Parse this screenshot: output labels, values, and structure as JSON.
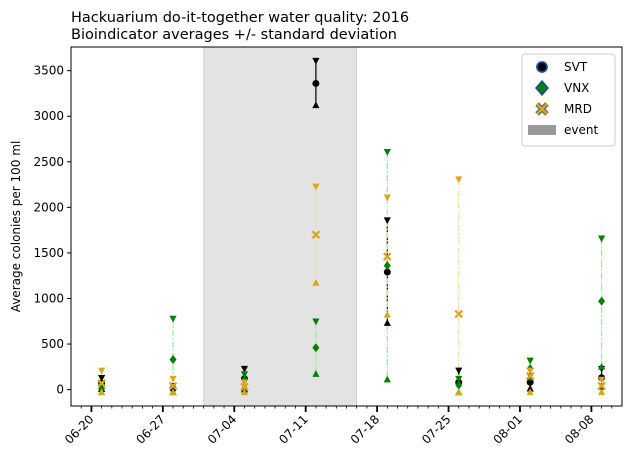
{
  "chart_data": {
    "type": "scatter",
    "title": "Hackuarium do-it-together water quality: 2016",
    "subtitle": "Bioindicator averages +/- standard deviation",
    "xlabel": "",
    "ylabel": "Average colonies per 100 ml",
    "xlim": [
      "2016-06-18",
      "2016-08-11"
    ],
    "ylim": [
      -180,
      3760
    ],
    "yticks": [
      0,
      500,
      1000,
      1500,
      2000,
      2500,
      3000,
      3500
    ],
    "xticks": [
      {
        "date": "2016-06-20",
        "label": "06-20"
      },
      {
        "date": "2016-06-27",
        "label": "06-27"
      },
      {
        "date": "2016-07-04",
        "label": "07-04"
      },
      {
        "date": "2016-07-11",
        "label": "07-11"
      },
      {
        "date": "2016-07-18",
        "label": "07-18"
      },
      {
        "date": "2016-07-25",
        "label": "07-25"
      },
      {
        "date": "2016-08-01",
        "label": "08-01"
      },
      {
        "date": "2016-08-08",
        "label": "08-08"
      }
    ],
    "event_span": [
      "2016-07-01",
      "2016-07-16"
    ],
    "legend_position": "top-right",
    "legend": [
      {
        "label": "SVT",
        "marker": "circle",
        "color": "#000000"
      },
      {
        "label": "VNX",
        "marker": "diamond",
        "color": "#008000"
      },
      {
        "label": "MRD",
        "marker": "x",
        "color": "#daa520"
      },
      {
        "label": "event",
        "marker": "patch",
        "color": "#999999"
      }
    ],
    "series": [
      {
        "name": "SVT",
        "color": "#000000",
        "marker": "circle",
        "line_color": "#000000",
        "points": [
          {
            "x": "2016-06-21",
            "y": 70,
            "low": 5,
            "high": 130
          },
          {
            "x": "2016-06-28",
            "y": 10,
            "low": -30,
            "high": 40
          },
          {
            "x": "2016-07-05",
            "y": 120,
            "low": 0,
            "high": 230
          },
          {
            "x": "2016-07-12",
            "y": 3360,
            "low": 3120,
            "high": 3610
          },
          {
            "x": "2016-07-19",
            "y": 1290,
            "low": 730,
            "high": 1860
          },
          {
            "x": "2016-07-26",
            "y": 80,
            "low": -30,
            "high": 210
          },
          {
            "x": "2016-08-02",
            "y": 80,
            "low": 10,
            "high": 150
          },
          {
            "x": "2016-08-09",
            "y": 130,
            "low": 30,
            "high": 230
          }
        ]
      },
      {
        "name": "VNX",
        "color": "#008000",
        "marker": "diamond",
        "line_color": "#90ee90",
        "points": [
          {
            "x": "2016-06-21",
            "y": 10,
            "low": -30,
            "high": 60
          },
          {
            "x": "2016-06-28",
            "y": 330,
            "low": -30,
            "high": 780
          },
          {
            "x": "2016-07-05",
            "y": 110,
            "low": 30,
            "high": 170
          },
          {
            "x": "2016-07-12",
            "y": 460,
            "low": 170,
            "high": 750
          },
          {
            "x": "2016-07-19",
            "y": 1360,
            "low": 110,
            "high": 2610
          },
          {
            "x": "2016-07-26",
            "y": 50,
            "low": -30,
            "high": 120
          },
          {
            "x": "2016-08-02",
            "y": 230,
            "low": 130,
            "high": 320
          },
          {
            "x": "2016-08-09",
            "y": 970,
            "low": 250,
            "high": 1660
          }
        ]
      },
      {
        "name": "MRD",
        "color": "#daa520",
        "marker": "x",
        "line_color": "#e8dc9a",
        "points": [
          {
            "x": "2016-06-21",
            "y": 70,
            "low": -30,
            "high": 210
          },
          {
            "x": "2016-06-28",
            "y": 40,
            "low": -30,
            "high": 120
          },
          {
            "x": "2016-07-05",
            "y": 30,
            "low": -30,
            "high": 80
          },
          {
            "x": "2016-07-12",
            "y": 1700,
            "low": 1170,
            "high": 2230
          },
          {
            "x": "2016-07-19",
            "y": 1460,
            "low": 820,
            "high": 2110
          },
          {
            "x": "2016-07-26",
            "y": 830,
            "low": -30,
            "high": 2310
          },
          {
            "x": "2016-08-02",
            "y": 150,
            "low": -30,
            "high": 210
          },
          {
            "x": "2016-08-09",
            "y": 40,
            "low": -30,
            "high": 110
          }
        ]
      }
    ]
  }
}
